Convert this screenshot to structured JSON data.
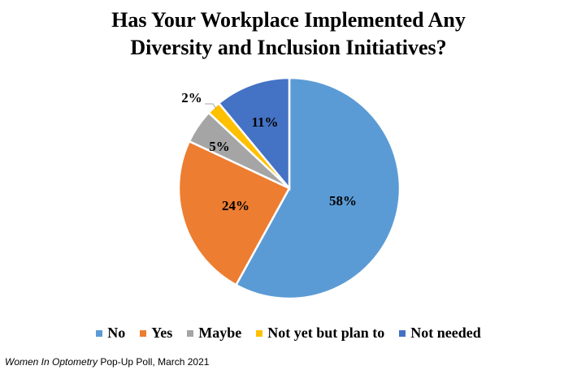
{
  "chart_data": {
    "type": "pie",
    "title_line1": "Has Your Workplace Implemented Any",
    "title_line2": "Diversity and Inclusion Initiatives?",
    "slices": [
      {
        "name": "No",
        "value": 58,
        "label": "58%",
        "color": "#5B9BD5"
      },
      {
        "name": "Yes",
        "value": 24,
        "label": "24%",
        "color": "#ED7D31"
      },
      {
        "name": "Maybe",
        "value": 5,
        "label": "5%",
        "color": "#A5A5A5"
      },
      {
        "name": "Not yet but plan to",
        "value": 2,
        "label": "2%",
        "color": "#FFC000"
      },
      {
        "name": "Not needed",
        "value": 11,
        "label": "11%",
        "color": "#4472C4"
      }
    ],
    "legend_position": "bottom"
  },
  "source": {
    "publication": "Women In Optometry",
    "rest": " Pop-Up Poll, March 2021"
  }
}
